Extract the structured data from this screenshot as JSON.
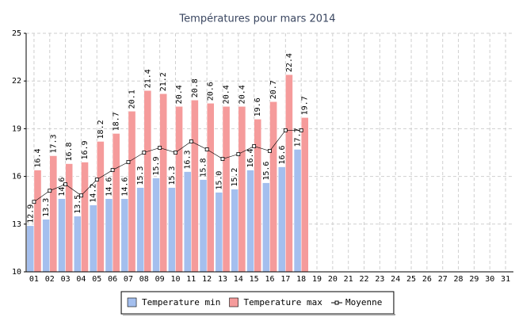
{
  "chart_data": {
    "type": "bar",
    "title": "Températures pour mars 2014",
    "categories": [
      "01",
      "02",
      "03",
      "04",
      "05",
      "06",
      "07",
      "08",
      "09",
      "10",
      "11",
      "12",
      "13",
      "14",
      "15",
      "16",
      "17",
      "18",
      "19",
      "20",
      "21",
      "22",
      "23",
      "24",
      "25",
      "26",
      "27",
      "28",
      "29",
      "30",
      "31"
    ],
    "series": [
      {
        "name": "Temperature min",
        "color": "#a4bfee",
        "values": [
          12.9,
          13.3,
          14.6,
          13.5,
          14.2,
          14.6,
          14.6,
          15.3,
          15.9,
          15.3,
          16.3,
          15.8,
          15.0,
          15.2,
          16.4,
          15.6,
          16.6,
          17.7,
          null,
          null,
          null,
          null,
          null,
          null,
          null,
          null,
          null,
          null,
          null,
          null,
          null
        ],
        "value_labels": [
          "12.9",
          "13.3",
          "14.6",
          "13.5",
          "14.2",
          "14.6",
          "14.6",
          "15.3",
          "15.9",
          "15.3",
          "16.3",
          "15.8",
          "15.0",
          "15.2",
          "16.4",
          "15.6",
          "16.6",
          "17.7",
          null,
          null,
          null,
          null,
          null,
          null,
          null,
          null,
          null,
          null,
          null,
          null,
          null
        ]
      },
      {
        "name": "Temperature max",
        "color": "#f59b9b",
        "values": [
          16.4,
          17.3,
          16.8,
          16.9,
          18.2,
          18.7,
          20.1,
          21.4,
          21.2,
          20.4,
          20.8,
          20.6,
          20.4,
          20.4,
          19.6,
          20.7,
          22.4,
          19.7,
          null,
          null,
          null,
          null,
          null,
          null,
          null,
          null,
          null,
          null,
          null,
          null,
          null
        ],
        "value_labels": [
          "16.4",
          "17.3",
          "16.8",
          "16.9",
          "18.2",
          "18.7",
          "20.1",
          "21.4",
          "21.2",
          "20.4",
          "20.8",
          "20.6",
          "20.4",
          "20.4",
          "19.6",
          "20.7",
          "22.4",
          "19.7",
          null,
          null,
          null,
          null,
          null,
          null,
          null,
          null,
          null,
          null,
          null,
          null,
          null
        ]
      },
      {
        "name": "Moyenne",
        "color": "#000000",
        "type": "line",
        "values": [
          14.4,
          15.1,
          15.5,
          14.8,
          15.8,
          16.4,
          16.9,
          17.5,
          17.8,
          17.5,
          18.2,
          17.7,
          17.1,
          17.4,
          17.9,
          17.6,
          18.9,
          18.9,
          null,
          null,
          null,
          null,
          null,
          null,
          null,
          null,
          null,
          null,
          null,
          null,
          null
        ]
      }
    ],
    "ylim": [
      10,
      25
    ],
    "yticks": [
      10,
      13,
      16,
      19,
      22,
      25
    ],
    "grid": true,
    "legend": "bottom"
  }
}
